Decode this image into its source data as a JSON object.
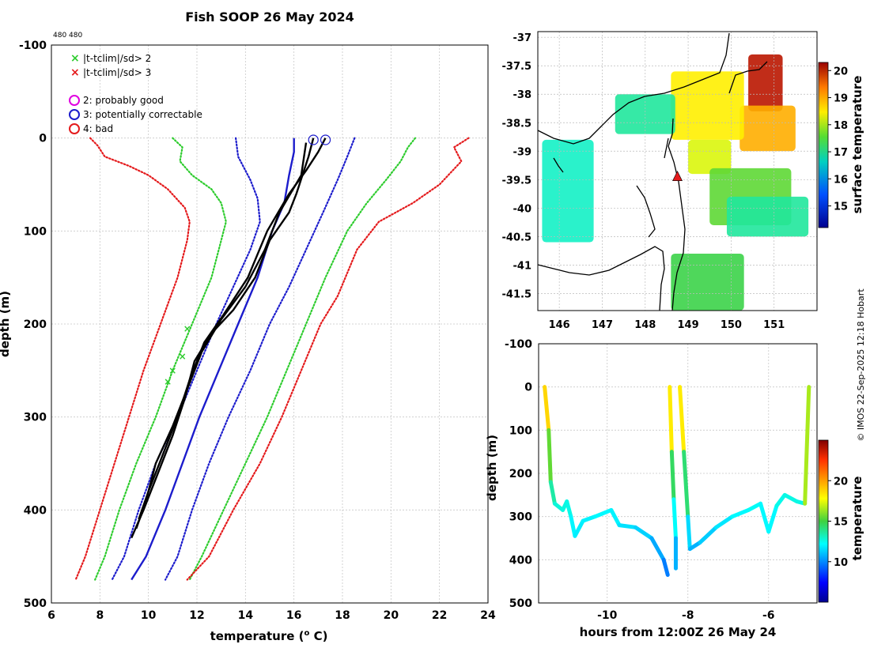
{
  "page": {
    "title": "Fish SOOP 26 May 2024",
    "corner_label": "480 480",
    "credit": "© IMOS 22-Sep-2025 12:18 Hobart"
  },
  "colors": {
    "red": "#e41a1c",
    "green": "#2ecc2e",
    "blue": "#1c1ccc",
    "black": "#000000",
    "magenta": "#e000e0",
    "coast": "#000000"
  },
  "chart_data": [
    {
      "type": "line",
      "id": "profile",
      "title": "Fish SOOP 26 May 2024",
      "xlabel": "temperature (",
      "xlabel_sup": "o",
      "xlabel_end": " C)",
      "ylabel": "depth (m)",
      "xlim": [
        6,
        24
      ],
      "ylim": [
        500,
        -100
      ],
      "xticks": [
        6,
        8,
        10,
        12,
        14,
        16,
        18,
        20,
        22,
        24
      ],
      "yticks": [
        -100,
        0,
        100,
        200,
        300,
        400,
        500
      ],
      "grid": true,
      "legend": {
        "markers": [
          {
            "label": "|t-tclim|/sd> 2",
            "symbol": "x",
            "color": "#2ecc2e"
          },
          {
            "label": "|t-tclim|/sd> 3",
            "symbol": "x",
            "color": "#e41a1c"
          }
        ],
        "flags": [
          {
            "label": "2: probably good",
            "symbol": "o",
            "color": "#e000e0"
          },
          {
            "label": "3: potentially correctable",
            "symbol": "o",
            "color": "#1c1ccc"
          },
          {
            "label": "4: bad",
            "symbol": "o",
            "color": "#e41a1c"
          }
        ]
      },
      "series": [
        {
          "name": "clim-3sd-low",
          "style": "dotted",
          "color": "#e41a1c",
          "points": [
            [
              7.6,
              0
            ],
            [
              7.9,
              8
            ],
            [
              8.2,
              20
            ],
            [
              9.2,
              30
            ],
            [
              10.0,
              40
            ],
            [
              10.8,
              55
            ],
            [
              11.5,
              75
            ],
            [
              11.7,
              90
            ],
            [
              11.6,
              110
            ],
            [
              11.2,
              150
            ],
            [
              10.5,
              200
            ],
            [
              9.8,
              250
            ],
            [
              9.2,
              300
            ],
            [
              8.6,
              350
            ],
            [
              8.0,
              400
            ],
            [
              7.4,
              450
            ],
            [
              7.0,
              475
            ]
          ]
        },
        {
          "name": "clim-2sd-low",
          "style": "dotted",
          "color": "#2ecc2e",
          "points": [
            [
              11.0,
              0
            ],
            [
              11.4,
              10
            ],
            [
              11.3,
              25
            ],
            [
              11.8,
              40
            ],
            [
              12.6,
              55
            ],
            [
              13.0,
              70
            ],
            [
              13.2,
              90
            ],
            [
              13.0,
              110
            ],
            [
              12.6,
              150
            ],
            [
              11.8,
              200
            ],
            [
              11.0,
              250
            ],
            [
              10.3,
              300
            ],
            [
              9.5,
              350
            ],
            [
              8.8,
              400
            ],
            [
              8.2,
              450
            ],
            [
              7.8,
              475
            ]
          ]
        },
        {
          "name": "clim-1sd-low",
          "style": "dotted",
          "color": "#1c1ccc",
          "points": [
            [
              13.6,
              0
            ],
            [
              13.7,
              20
            ],
            [
              14.2,
              45
            ],
            [
              14.5,
              65
            ],
            [
              14.6,
              90
            ],
            [
              14.2,
              120
            ],
            [
              13.5,
              160
            ],
            [
              12.8,
              200
            ],
            [
              12.0,
              250
            ],
            [
              11.2,
              300
            ],
            [
              10.3,
              350
            ],
            [
              9.6,
              400
            ],
            [
              9.0,
              450
            ],
            [
              8.5,
              475
            ]
          ]
        },
        {
          "name": "clim-mean",
          "style": "solid",
          "color": "#1c1ccc",
          "points": [
            [
              16.0,
              0
            ],
            [
              16.0,
              15
            ],
            [
              15.8,
              40
            ],
            [
              15.6,
              70
            ],
            [
              15.1,
              100
            ],
            [
              14.5,
              150
            ],
            [
              13.7,
              200
            ],
            [
              12.9,
              250
            ],
            [
              12.1,
              300
            ],
            [
              11.4,
              350
            ],
            [
              10.7,
              400
            ],
            [
              9.9,
              450
            ],
            [
              9.3,
              475
            ]
          ]
        },
        {
          "name": "clim-1sd-high",
          "style": "dotted",
          "color": "#1c1ccc",
          "points": [
            [
              18.5,
              0
            ],
            [
              18.2,
              20
            ],
            [
              17.8,
              45
            ],
            [
              17.2,
              80
            ],
            [
              16.5,
              120
            ],
            [
              15.8,
              160
            ],
            [
              15.0,
              200
            ],
            [
              14.2,
              250
            ],
            [
              13.3,
              300
            ],
            [
              12.5,
              350
            ],
            [
              11.8,
              400
            ],
            [
              11.2,
              450
            ],
            [
              10.7,
              475
            ]
          ]
        },
        {
          "name": "clim-2sd-high",
          "style": "dotted",
          "color": "#2ecc2e",
          "points": [
            [
              21.0,
              0
            ],
            [
              20.7,
              10
            ],
            [
              20.4,
              25
            ],
            [
              19.8,
              45
            ],
            [
              19.0,
              70
            ],
            [
              18.2,
              100
            ],
            [
              17.3,
              150
            ],
            [
              16.5,
              200
            ],
            [
              15.7,
              250
            ],
            [
              14.9,
              300
            ],
            [
              14.0,
              350
            ],
            [
              13.1,
              400
            ],
            [
              12.2,
              450
            ],
            [
              11.7,
              475
            ]
          ]
        },
        {
          "name": "clim-3sd-high",
          "style": "dotted",
          "color": "#e41a1c",
          "points": [
            [
              23.2,
              0
            ],
            [
              22.6,
              10
            ],
            [
              22.9,
              25
            ],
            [
              22.0,
              50
            ],
            [
              20.9,
              70
            ],
            [
              19.5,
              90
            ],
            [
              18.6,
              120
            ],
            [
              17.8,
              170
            ],
            [
              17.1,
              200
            ],
            [
              16.3,
              250
            ],
            [
              15.5,
              300
            ],
            [
              14.6,
              350
            ],
            [
              13.5,
              400
            ],
            [
              12.5,
              450
            ],
            [
              11.6,
              475
            ]
          ]
        },
        {
          "name": "xbt-1",
          "style": "solid",
          "color": "#000000",
          "points": [
            [
              16.8,
              0
            ],
            [
              16.6,
              20
            ],
            [
              16.1,
              60
            ],
            [
              15.8,
              80
            ],
            [
              15.0,
              110
            ],
            [
              14.4,
              150
            ],
            [
              13.5,
              185
            ],
            [
              12.6,
              210
            ],
            [
              11.9,
              240
            ],
            [
              11.5,
              280
            ],
            [
              11.0,
              320
            ],
            [
              10.4,
              360
            ],
            [
              9.8,
              400
            ],
            [
              9.3,
              430
            ]
          ]
        },
        {
          "name": "xbt-2",
          "style": "solid",
          "color": "#000000",
          "points": [
            [
              17.3,
              0
            ],
            [
              17.0,
              15
            ],
            [
              16.5,
              35
            ],
            [
              15.8,
              60
            ],
            [
              14.9,
              100
            ],
            [
              14.1,
              150
            ],
            [
              13.1,
              190
            ],
            [
              12.3,
              220
            ],
            [
              11.7,
              260
            ],
            [
              11.2,
              300
            ],
            [
              10.6,
              340
            ],
            [
              10.0,
              380
            ],
            [
              9.6,
              410
            ]
          ]
        },
        {
          "name": "xbt-3",
          "style": "solid",
          "color": "#000000",
          "points": [
            [
              16.5,
              5
            ],
            [
              16.3,
              40
            ],
            [
              15.4,
              80
            ],
            [
              14.8,
              120
            ],
            [
              14.0,
              160
            ],
            [
              13.0,
              195
            ],
            [
              12.2,
              230
            ],
            [
              11.6,
              270
            ],
            [
              11.0,
              310
            ],
            [
              10.3,
              350
            ],
            [
              9.9,
              390
            ],
            [
              9.5,
              420
            ]
          ]
        }
      ],
      "flagged_points": [
        {
          "temp": 16.8,
          "depth": 2,
          "flag": 3
        },
        {
          "temp": 17.3,
          "depth": 2,
          "flag": 3
        },
        {
          "temp": 11.4,
          "depth": 235,
          "flag": 2
        },
        {
          "temp": 11.0,
          "depth": 250,
          "flag": 2
        },
        {
          "temp": 10.8,
          "depth": 262,
          "flag": 2
        },
        {
          "temp": 11.6,
          "depth": 205,
          "flag": 2
        }
      ]
    },
    {
      "type": "heatmap",
      "id": "map",
      "colorbar_label": "surface temperature",
      "xlim": [
        145.5,
        152
      ],
      "ylim": [
        -41.8,
        -36.9
      ],
      "xticks": [
        146,
        147,
        148,
        149,
        150,
        151
      ],
      "yticks": [
        -37,
        -37.5,
        -38,
        -38.5,
        -39,
        -39.5,
        -40,
        -40.5,
        -41,
        -41.5
      ],
      "cbar_range": [
        14.2,
        20.3
      ],
      "cbar_ticks": [
        15,
        16,
        17,
        18,
        19,
        20
      ],
      "ship_position": {
        "lon": 148.75,
        "lat": -39.45,
        "marker": "triangle",
        "color": "#e41a1c"
      },
      "sst_patches": [
        {
          "lon": [
            150.4,
            151.2
          ],
          "lat": [
            -38.3,
            -37.3
          ],
          "value": 20.2
        },
        {
          "lon": [
            150.2,
            151.5
          ],
          "lat": [
            -39.0,
            -38.2
          ],
          "value": 18.8
        },
        {
          "lon": [
            148.6,
            150.3
          ],
          "lat": [
            -38.8,
            -37.6
          ],
          "value": 18.3
        },
        {
          "lon": [
            147.3,
            148.7
          ],
          "lat": [
            -38.7,
            -38.0
          ],
          "value": 16.8
        },
        {
          "lon": [
            145.6,
            146.8
          ],
          "lat": [
            -40.6,
            -38.8
          ],
          "value": 16.6
        },
        {
          "lon": [
            149.0,
            150.0
          ],
          "lat": [
            -39.4,
            -38.8
          ],
          "value": 18.0
        },
        {
          "lon": [
            149.5,
            151.4
          ],
          "lat": [
            -40.3,
            -39.3
          ],
          "value": 17.4
        },
        {
          "lon": [
            148.6,
            150.3
          ],
          "lat": [
            -41.8,
            -40.8
          ],
          "value": 17.2
        },
        {
          "lon": [
            149.9,
            151.8
          ],
          "lat": [
            -40.5,
            -39.8
          ],
          "value": 16.8
        }
      ]
    },
    {
      "type": "scatter",
      "id": "section",
      "xlabel": "hours from 12:00Z 26 May 24",
      "ylabel": "depth (m)",
      "colorbar_label": "temperature",
      "xlim": [
        -11.7,
        -4.8
      ],
      "ylim": [
        500,
        -100
      ],
      "xticks": [
        -10,
        -8,
        -6
      ],
      "yticks": [
        -100,
        0,
        100,
        200,
        300,
        400,
        500
      ],
      "cbar_range": [
        5,
        25
      ],
      "cbar_ticks": [
        10,
        15,
        20
      ],
      "tracks": [
        {
          "name": "drop-1",
          "points": [
            [
              -11.55,
              0,
              20.5
            ],
            [
              -11.45,
              100,
              17
            ],
            [
              -11.4,
              220,
              14
            ],
            [
              -11.3,
              270,
              13
            ],
            [
              -11.1,
              285,
              12.5
            ],
            [
              -11.0,
              265,
              12.8
            ],
            [
              -10.9,
              300,
              12.3
            ],
            [
              -10.8,
              345,
              11.8
            ],
            [
              -10.6,
              310,
              12
            ],
            [
              -10.3,
              300,
              12
            ],
            [
              -9.9,
              285,
              12.2
            ],
            [
              -9.7,
              320,
              11.8
            ],
            [
              -9.3,
              325,
              11.5
            ],
            [
              -8.9,
              350,
              11.2
            ],
            [
              -8.6,
              400,
              10
            ],
            [
              -8.5,
              435,
              9.5
            ]
          ]
        },
        {
          "name": "drop-2",
          "points": [
            [
              -8.45,
              0,
              20.5
            ],
            [
              -8.4,
              150,
              16
            ],
            [
              -8.35,
              260,
              13
            ],
            [
              -8.3,
              350,
              11.5
            ],
            [
              -8.3,
              420,
              10
            ]
          ]
        },
        {
          "name": "drop-3",
          "points": [
            [
              -8.2,
              0,
              20.5
            ],
            [
              -8.1,
              150,
              16
            ],
            [
              -8.0,
              300,
              12.5
            ],
            [
              -7.95,
              375,
              10.5
            ],
            [
              -7.7,
              360,
              11
            ],
            [
              -7.3,
              325,
              11.5
            ],
            [
              -6.9,
              300,
              12
            ],
            [
              -6.5,
              285,
              12.2
            ],
            [
              -6.2,
              270,
              12.4
            ],
            [
              -6.0,
              335,
              11.8
            ],
            [
              -5.8,
              275,
              12.4
            ],
            [
              -5.6,
              250,
              12.6
            ],
            [
              -5.3,
              265,
              12.6
            ],
            [
              -5.1,
              270,
              12.6
            ],
            [
              -5.0,
              0,
              20.5
            ]
          ]
        }
      ]
    }
  ]
}
